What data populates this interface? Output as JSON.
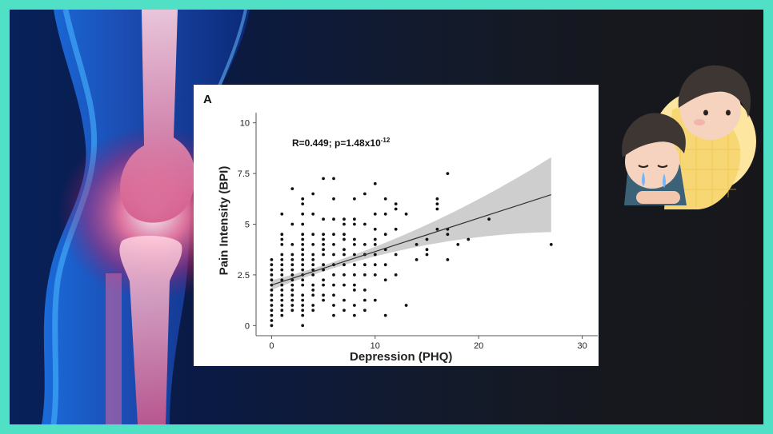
{
  "figure": {
    "panel_letter": "A",
    "stat_prefix": "R=0.449; p=1.48x10",
    "stat_exponent": "-12"
  },
  "chart_data": {
    "type": "scatter",
    "title": "",
    "xlabel": "Depression (PHQ)",
    "ylabel": "Pain Intensity (BPI)",
    "xlim": [
      -1.5,
      31.5
    ],
    "ylim": [
      -0.5,
      10.5
    ],
    "xticks": [
      0,
      10,
      20,
      30
    ],
    "yticks": [
      0,
      2.5,
      5,
      7.5,
      10
    ],
    "ytick_labels": [
      "0",
      "2.5",
      "5",
      "7.5",
      "10"
    ],
    "grid": false,
    "annotation": "R=0.449; p=1.48x10^-12",
    "regression": {
      "intercept": 2.0,
      "slope": 0.165,
      "x_range": [
        0,
        27
      ]
    },
    "points": [
      [
        0,
        0
      ],
      [
        0,
        0.25
      ],
      [
        0,
        0.5
      ],
      [
        0,
        0.75
      ],
      [
        0,
        1
      ],
      [
        0,
        1.25
      ],
      [
        0,
        1.5
      ],
      [
        0,
        1.75
      ],
      [
        0,
        2
      ],
      [
        0,
        2.25
      ],
      [
        0,
        2.5
      ],
      [
        0,
        2.75
      ],
      [
        0,
        3
      ],
      [
        0,
        3.25
      ],
      [
        1,
        0.5
      ],
      [
        1,
        0.75
      ],
      [
        1,
        1
      ],
      [
        1,
        1.25
      ],
      [
        1,
        1.5
      ],
      [
        1,
        1.75
      ],
      [
        1,
        2
      ],
      [
        1,
        2.25
      ],
      [
        1,
        2.5
      ],
      [
        1,
        2.75
      ],
      [
        1,
        3
      ],
      [
        1,
        3.25
      ],
      [
        1,
        3.5
      ],
      [
        1,
        4
      ],
      [
        1,
        4.25
      ],
      [
        1,
        4.5
      ],
      [
        1,
        5.5
      ],
      [
        2,
        0.75
      ],
      [
        2,
        1
      ],
      [
        2,
        1.25
      ],
      [
        2,
        1.5
      ],
      [
        2,
        1.75
      ],
      [
        2,
        2
      ],
      [
        2,
        2.25
      ],
      [
        2,
        2.5
      ],
      [
        2,
        2.75
      ],
      [
        2,
        3
      ],
      [
        2,
        3.25
      ],
      [
        2,
        3.5
      ],
      [
        2,
        4
      ],
      [
        2,
        5
      ],
      [
        2,
        6.75
      ],
      [
        3,
        0
      ],
      [
        3,
        0.5
      ],
      [
        3,
        0.75
      ],
      [
        3,
        1
      ],
      [
        3,
        1.25
      ],
      [
        3,
        1.5
      ],
      [
        3,
        2
      ],
      [
        3,
        2.25
      ],
      [
        3,
        2.5
      ],
      [
        3,
        2.75
      ],
      [
        3,
        3
      ],
      [
        3,
        3.25
      ],
      [
        3,
        3.5
      ],
      [
        3,
        3.75
      ],
      [
        3,
        4
      ],
      [
        3,
        4.25
      ],
      [
        3,
        4.5
      ],
      [
        3,
        5
      ],
      [
        3,
        5.5
      ],
      [
        3,
        6
      ],
      [
        3,
        6.25
      ],
      [
        4,
        0.75
      ],
      [
        4,
        1
      ],
      [
        4,
        1.5
      ],
      [
        4,
        1.75
      ],
      [
        4,
        2
      ],
      [
        4,
        2.5
      ],
      [
        4,
        2.75
      ],
      [
        4,
        3
      ],
      [
        4,
        3.25
      ],
      [
        4,
        3.5
      ],
      [
        4,
        4
      ],
      [
        4,
        4.5
      ],
      [
        4,
        5.5
      ],
      [
        4,
        6.5
      ],
      [
        5,
        1.25
      ],
      [
        5,
        1.5
      ],
      [
        5,
        2
      ],
      [
        5,
        2.25
      ],
      [
        5,
        2.75
      ],
      [
        5,
        3
      ],
      [
        5,
        3.5
      ],
      [
        5,
        3.75
      ],
      [
        5,
        4
      ],
      [
        5,
        4.25
      ],
      [
        5,
        4.5
      ],
      [
        5,
        5.25
      ],
      [
        5,
        7.25
      ],
      [
        6,
        0.5
      ],
      [
        6,
        1
      ],
      [
        6,
        1.5
      ],
      [
        6,
        2
      ],
      [
        6,
        2.5
      ],
      [
        6,
        3
      ],
      [
        6,
        3.5
      ],
      [
        6,
        4
      ],
      [
        6,
        4.5
      ],
      [
        6,
        5.25
      ],
      [
        6,
        6.25
      ],
      [
        6,
        7.25
      ],
      [
        7,
        0.75
      ],
      [
        7,
        1.25
      ],
      [
        7,
        2
      ],
      [
        7,
        2.5
      ],
      [
        7,
        3
      ],
      [
        7,
        3.5
      ],
      [
        7,
        3.75
      ],
      [
        7,
        4.25
      ],
      [
        7,
        4.5
      ],
      [
        7,
        5
      ],
      [
        7,
        5.25
      ],
      [
        8,
        0.5
      ],
      [
        8,
        1
      ],
      [
        8,
        1.75
      ],
      [
        8,
        2
      ],
      [
        8,
        2.5
      ],
      [
        8,
        3
      ],
      [
        8,
        3.5
      ],
      [
        8,
        4
      ],
      [
        8,
        4.25
      ],
      [
        8,
        5
      ],
      [
        8,
        5.25
      ],
      [
        8,
        6.25
      ],
      [
        9,
        0.75
      ],
      [
        9,
        1.25
      ],
      [
        9,
        1.75
      ],
      [
        9,
        2.5
      ],
      [
        9,
        3
      ],
      [
        9,
        3.5
      ],
      [
        9,
        4
      ],
      [
        9,
        5
      ],
      [
        9,
        6.5
      ],
      [
        10,
        1.25
      ],
      [
        10,
        2.5
      ],
      [
        10,
        3
      ],
      [
        10,
        3.5
      ],
      [
        10,
        4
      ],
      [
        10,
        4.25
      ],
      [
        10,
        4.75
      ],
      [
        10,
        5.5
      ],
      [
        10,
        7
      ],
      [
        11,
        0.5
      ],
      [
        11,
        2.25
      ],
      [
        11,
        3
      ],
      [
        11,
        3.75
      ],
      [
        11,
        4.5
      ],
      [
        11,
        5.5
      ],
      [
        11,
        6.25
      ],
      [
        12,
        2.5
      ],
      [
        12,
        3.5
      ],
      [
        12,
        4.75
      ],
      [
        12,
        5.75
      ],
      [
        12,
        6
      ],
      [
        13,
        1
      ],
      [
        13,
        5.5
      ],
      [
        14,
        3.25
      ],
      [
        14,
        4
      ],
      [
        15,
        3.5
      ],
      [
        15,
        3.75
      ],
      [
        15,
        4.25
      ],
      [
        16,
        4.75
      ],
      [
        16,
        5.75
      ],
      [
        16,
        6
      ],
      [
        16,
        6.25
      ],
      [
        17,
        3.25
      ],
      [
        17,
        4.5
      ],
      [
        17,
        4.75
      ],
      [
        17,
        7.5
      ],
      [
        18,
        4
      ],
      [
        19,
        4.25
      ],
      [
        21,
        5.25
      ],
      [
        27,
        4
      ]
    ]
  }
}
